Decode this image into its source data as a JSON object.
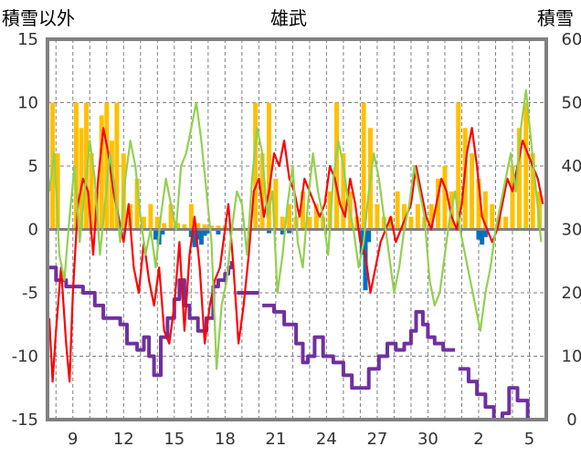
{
  "chart_data": {
    "type": "line",
    "title": "雄武",
    "ylabel_left": "積雪以外",
    "ylabel_right": "積雪",
    "x_ticks": [
      "9",
      "12",
      "15",
      "18",
      "21",
      "24",
      "27",
      "30",
      "2",
      "5"
    ],
    "y_left_ticks": [
      "15",
      "10",
      "5",
      "0",
      "-5",
      "-10",
      "-15"
    ],
    "y_right_ticks": [
      "60",
      "50",
      "40",
      "30",
      "20",
      "10",
      "0"
    ],
    "ylim_left": [
      -15,
      15
    ],
    "ylim_right": [
      0,
      60
    ],
    "x_range": [
      7.5,
      37.0
    ],
    "grid": true,
    "colors": {
      "frame": "#808080",
      "grid": "#7f7f7f",
      "zero_line": "#808080",
      "red_line": "#ff0000",
      "green_line": "#92d050",
      "purple_line": "#7030a0",
      "yellow_bar": "#ffc000",
      "blue_bar": "#0070c0"
    },
    "series": [
      {
        "axis": "right",
        "style": "step",
        "color": "#7030a0",
        "x": [
          7.6,
          8.0,
          8.6,
          9.6,
          10.3,
          10.8,
          11.8,
          12.2,
          12.8,
          13.2,
          13.5,
          13.8,
          14.2,
          14.6,
          15.0,
          15.3,
          15.6,
          15.9,
          16.4,
          16.9,
          17.3,
          17.6,
          18.0,
          18.2,
          18.4
        ],
        "values": [
          24,
          22,
          21,
          20,
          18,
          16,
          15,
          12,
          11,
          13,
          10,
          7,
          13,
          16,
          19,
          22,
          18,
          16,
          14,
          16,
          21,
          22,
          23,
          24,
          25
        ]
      },
      {
        "axis": "right",
        "style": "step",
        "color": "#7030a0",
        "x": [
          18.7,
          19.4,
          20.0
        ],
        "values": [
          20,
          20,
          20
        ]
      },
      {
        "axis": "right",
        "style": "step",
        "color": "#7030a0",
        "x": [
          20.2,
          20.9,
          21.5,
          22.2,
          22.6,
          22.9,
          23.3,
          23.8,
          24.4,
          25.0,
          25.5,
          26.0,
          26.5,
          27.1,
          27.6,
          28.1,
          28.6,
          29.0,
          29.3,
          29.7,
          30.0,
          30.4,
          30.9,
          31.6
        ],
        "values": [
          18,
          17,
          15,
          12,
          9,
          10,
          13,
          10,
          9,
          7,
          5,
          5,
          8,
          10,
          12,
          11,
          12,
          14,
          17,
          15,
          13,
          12,
          11,
          11
        ]
      },
      {
        "axis": "right",
        "style": "step",
        "color": "#7030a0",
        "x": [
          31.8,
          32.4,
          32.9,
          33.4,
          33.9,
          34.4,
          34.8,
          35.3,
          35.9,
          36.9
        ],
        "values": [
          8,
          6,
          4,
          2,
          0,
          1,
          5,
          3,
          0,
          0
        ]
      },
      {
        "axis": "left",
        "style": "line",
        "color": "#ff0000",
        "x": [
          7.6,
          7.8,
          8.0,
          8.3,
          8.6,
          8.8,
          9.0,
          9.3,
          9.6,
          9.9,
          10.2,
          10.5,
          10.8,
          11.1,
          11.4,
          11.7,
          12.0,
          12.3,
          12.6,
          12.9,
          13.2,
          13.5,
          13.8,
          14.1,
          14.4,
          14.7,
          15.0,
          15.3,
          15.6,
          15.9,
          16.2,
          16.5,
          16.8,
          17.1,
          17.4,
          17.7,
          18.0,
          18.2,
          18.5,
          18.8,
          19.1,
          19.4,
          19.7,
          20.0,
          20.3,
          20.6,
          20.9,
          21.2,
          21.5,
          21.8,
          22.1,
          22.4,
          22.7,
          23.0,
          23.3,
          23.6,
          23.9,
          24.2,
          24.5,
          24.8,
          25.1,
          25.4,
          25.7,
          26.0,
          26.3,
          26.6,
          26.9,
          27.2,
          27.5,
          27.8,
          28.1,
          28.4,
          28.7,
          29.0,
          29.3,
          29.6,
          29.9,
          30.2,
          30.5,
          30.8,
          31.1,
          31.4,
          31.7,
          32.0,
          32.3,
          32.6,
          32.9,
          33.2,
          33.5,
          33.8,
          34.1,
          34.4,
          34.7,
          35.0,
          35.3,
          35.6,
          35.9,
          36.2,
          36.5,
          36.8
        ],
        "values": [
          -7,
          -12,
          -8,
          -3,
          -9,
          -12,
          -5,
          2,
          4,
          3,
          -2,
          4,
          8,
          6,
          3,
          1,
          -1,
          2,
          -3,
          -5,
          -1,
          -4,
          -6,
          -3,
          -8,
          -9,
          -6,
          -1,
          -8,
          -2,
          1,
          -3,
          -9,
          -6,
          -4,
          -3,
          0,
          2,
          -3,
          -9,
          -6,
          -2,
          3,
          4,
          1,
          3,
          6,
          5,
          7,
          4,
          3,
          1,
          4,
          3,
          2,
          1,
          2,
          5,
          4,
          2,
          1,
          4,
          2,
          -1,
          -2,
          -5,
          -3,
          -1,
          0,
          1,
          -1,
          0,
          1,
          2,
          5,
          3,
          1,
          0,
          2,
          4,
          3,
          1,
          0,
          2,
          6,
          8,
          5,
          1,
          0,
          -1,
          0,
          2,
          4,
          3,
          5,
          7,
          6,
          5,
          4,
          2
        ],
        "style_note": ""
      },
      {
        "axis": "left",
        "style": "line",
        "color": "#92d050",
        "x": [
          7.6,
          7.9,
          8.2,
          8.5,
          8.8,
          9.1,
          9.4,
          9.7,
          10.0,
          10.3,
          10.6,
          10.9,
          11.2,
          11.5,
          11.8,
          12.1,
          12.4,
          12.7,
          13.0,
          13.3,
          13.6,
          13.9,
          14.2,
          14.5,
          14.8,
          15.1,
          15.4,
          15.7,
          16.0,
          16.3,
          16.6,
          16.9,
          17.2,
          17.5,
          17.8,
          18.1,
          18.4,
          18.7,
          19.0,
          19.3,
          19.6,
          19.9,
          20.2,
          20.5,
          20.8,
          21.1,
          21.4,
          21.7,
          22.0,
          22.3,
          22.6,
          22.9,
          23.2,
          23.5,
          23.8,
          24.1,
          24.4,
          24.7,
          25.0,
          25.3,
          25.6,
          25.9,
          26.2,
          26.5,
          26.8,
          27.1,
          27.4,
          27.7,
          28.0,
          28.3,
          28.6,
          28.9,
          29.2,
          29.5,
          29.8,
          30.1,
          30.4,
          30.7,
          31.0,
          31.3,
          31.6,
          31.9,
          32.2,
          32.5,
          32.8,
          33.1,
          33.4,
          33.7,
          34.0,
          34.3,
          34.6,
          34.9,
          35.2,
          35.5,
          35.8,
          36.1,
          36.4,
          36.7
        ],
        "values": [
          3,
          6,
          -2,
          -4,
          1,
          5,
          -1,
          3,
          7,
          4,
          -2,
          2,
          6,
          3,
          -1,
          4,
          7,
          5,
          1,
          -2,
          0,
          -3,
          1,
          4,
          2,
          0,
          5,
          6,
          8,
          10,
          7,
          3,
          -1,
          -11,
          -6,
          -4,
          0,
          3,
          2,
          -2,
          4,
          8,
          6,
          1,
          3,
          -5,
          -2,
          2,
          5,
          -1,
          -3,
          2,
          6,
          3,
          1,
          -2,
          4,
          7,
          5,
          2,
          0,
          -3,
          -1,
          3,
          6,
          4,
          1,
          -2,
          -5,
          -3,
          0,
          2,
          5,
          3,
          1,
          -4,
          -6,
          -5,
          -2,
          1,
          3,
          0,
          -2,
          -4,
          -6,
          -8,
          -5,
          -3,
          0,
          2,
          4,
          6,
          3,
          8,
          11,
          7,
          3,
          -1
        ]
      }
    ],
    "bars": [
      {
        "axis": "left",
        "color": "#ffc000",
        "x": [
          7.8,
          8.1,
          9.2,
          9.5,
          9.8,
          10.1,
          10.4,
          10.7,
          11.0,
          11.3,
          11.6,
          12.0,
          12.4,
          12.8,
          13.2,
          13.6,
          14.0,
          14.4,
          14.8,
          15.2,
          15.6,
          16.0,
          16.4,
          16.8,
          17.2,
          17.6,
          18.0,
          18.4,
          19.8,
          20.2,
          20.6,
          21.0,
          21.4,
          21.8,
          22.2,
          22.6,
          23.0,
          23.4,
          23.8,
          24.2,
          24.6,
          25.0,
          25.4,
          25.8,
          26.2,
          26.6,
          27.0,
          27.4,
          27.8,
          28.2,
          28.6,
          29.0,
          29.4,
          29.8,
          30.2,
          30.6,
          31.0,
          31.4,
          31.8,
          32.2,
          32.6,
          33.0,
          33.4,
          33.8,
          34.2,
          34.6,
          35.0,
          35.4,
          35.8,
          36.2,
          36.6
        ],
        "values": [
          10,
          6,
          10,
          8,
          10,
          6,
          3,
          9,
          10,
          7,
          10,
          6,
          2,
          4,
          1,
          2,
          1,
          0.5,
          2,
          0.5,
          0.4,
          2,
          0.5,
          0.4,
          0.3,
          0.3,
          0.3,
          0.2,
          10,
          6,
          10,
          4,
          1,
          2,
          1,
          3,
          1,
          2,
          1,
          3,
          10,
          6,
          3,
          1,
          10,
          8,
          2,
          1,
          1,
          3,
          2,
          1,
          2,
          1,
          2,
          4,
          5,
          3,
          10,
          8,
          6,
          4,
          3,
          2,
          1,
          1,
          5,
          8,
          10,
          6,
          3
        ]
      },
      {
        "axis": "left",
        "color": "#0070c0",
        "x": [
          13.9,
          14.1,
          14.3,
          16.0,
          16.2,
          16.4,
          16.6,
          16.8,
          17.0,
          17.6,
          20.6,
          21.4,
          21.8,
          26.1,
          26.3,
          26.5,
          33.0,
          33.2,
          33.4
        ],
        "values": [
          -0.8,
          -1.2,
          -0.4,
          -0.6,
          -1.4,
          -0.8,
          -1.2,
          -0.5,
          -0.3,
          -0.4,
          -0.3,
          -0.4,
          -0.3,
          -2.0,
          -4.8,
          -1.0,
          -0.8,
          -1.2,
          -0.6
        ]
      }
    ]
  }
}
